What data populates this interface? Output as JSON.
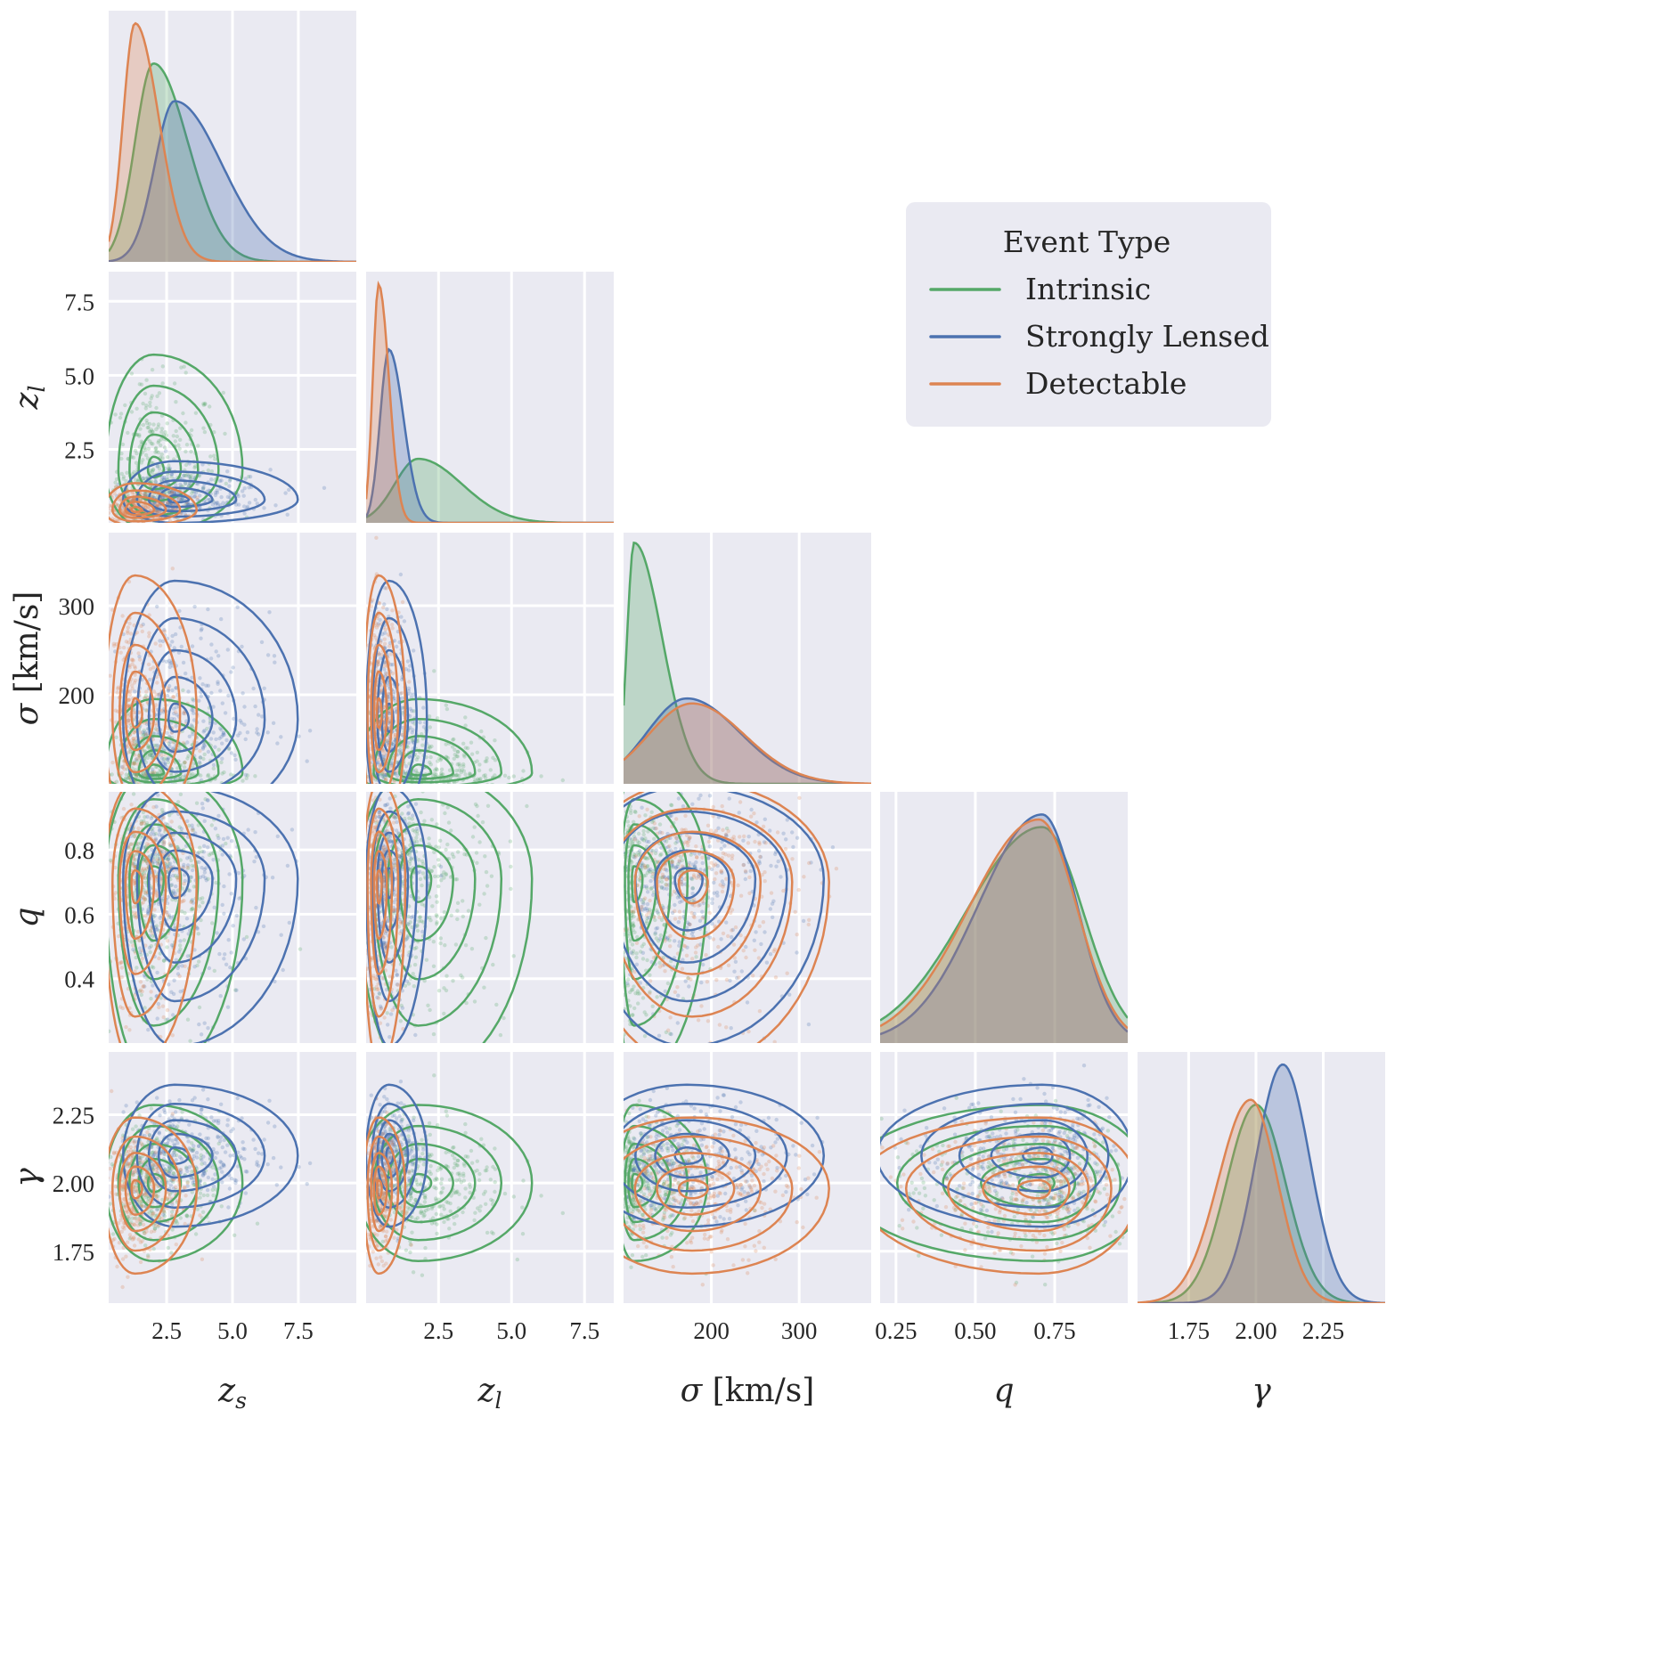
{
  "chart_data": {
    "type": "scatter",
    "kind": "pairplot-corner",
    "grid": true,
    "variables": [
      {
        "key": "zs",
        "label": {
          "main": "z",
          "sub": "s",
          "unit": ""
        },
        "range": [
          0.3,
          9.7
        ],
        "ticks": [
          2.5,
          5.0,
          7.5
        ],
        "tick_labels": [
          "2.5",
          "5.0",
          "7.5"
        ]
      },
      {
        "key": "zl",
        "label": {
          "main": "z",
          "sub": "l",
          "unit": ""
        },
        "range": [
          0.02,
          8.5
        ],
        "ticks": [
          2.5,
          5.0,
          7.5
        ],
        "tick_labels": [
          "2.5",
          "5.0",
          "7.5"
        ]
      },
      {
        "key": "sigma",
        "label": {
          "main": "σ",
          "sub": "",
          "unit": " [km/s]"
        },
        "range": [
          100,
          382
        ],
        "ticks": [
          200,
          300
        ],
        "tick_labels": [
          "200",
          "300"
        ]
      },
      {
        "key": "q",
        "label": {
          "main": "q",
          "sub": "",
          "unit": ""
        },
        "range": [
          0.2,
          0.98
        ],
        "ticks": [
          0.25,
          0.5,
          0.75
        ],
        "tick_labels": [
          "0.25",
          "0.50",
          "0.75"
        ],
        "y_ticks": [
          0.4,
          0.6,
          0.8
        ],
        "y_tick_labels": [
          "0.4",
          "0.6",
          "0.8"
        ]
      },
      {
        "key": "gamma",
        "label": {
          "main": "γ",
          "sub": "",
          "unit": ""
        },
        "range": [
          1.56,
          2.48
        ],
        "ticks": [
          1.75,
          2.0,
          2.25
        ],
        "tick_labels": [
          "1.75",
          "2.00",
          "2.25"
        ]
      }
    ],
    "series": [
      {
        "name": "Intrinsic",
        "color": "#55a868",
        "dist": {
          "zs": {
            "mode": 2.0,
            "sd_left": 0.7,
            "sd_right": 1.3,
            "peak": 0.79
          },
          "zl": {
            "mode": 1.8,
            "sd_left": 0.8,
            "sd_right": 1.5,
            "peak": 0.255
          },
          "sigma": {
            "mode": 112,
            "sd_left": 8,
            "sd_right": 32,
            "peak": 0.96
          },
          "q": {
            "mode": 0.71,
            "sd_left": 0.24,
            "sd_right": 0.13,
            "peak": 0.86
          },
          "gamma": {
            "mode": 2.0,
            "sd_left": 0.11,
            "sd_right": 0.11,
            "peak": 0.79
          }
        }
      },
      {
        "name": "Strongly Lensed",
        "color": "#4c72b0",
        "dist": {
          "zs": {
            "mode": 2.8,
            "sd_left": 0.75,
            "sd_right": 1.8,
            "peak": 0.64
          },
          "zl": {
            "mode": 0.8,
            "sd_left": 0.3,
            "sd_right": 0.5,
            "peak": 0.69
          },
          "sigma": {
            "mode": 172,
            "sd_left": 45,
            "sd_right": 60,
            "peak": 0.34
          },
          "q": {
            "mode": 0.71,
            "sd_left": 0.2,
            "sd_right": 0.11,
            "peak": 0.91
          },
          "gamma": {
            "mode": 2.1,
            "sd_left": 0.1,
            "sd_right": 0.1,
            "peak": 0.95
          }
        }
      },
      {
        "name": "Detectable",
        "color": "#dd8452",
        "dist": {
          "zs": {
            "mode": 1.3,
            "sd_left": 0.45,
            "sd_right": 0.9,
            "peak": 0.95
          },
          "zl": {
            "mode": 0.45,
            "sd_left": 0.2,
            "sd_right": 0.35,
            "peak": 0.95
          },
          "sigma": {
            "mode": 178,
            "sd_left": 50,
            "sd_right": 60,
            "peak": 0.32
          },
          "q": {
            "mode": 0.7,
            "sd_left": 0.22,
            "sd_right": 0.12,
            "peak": 0.89
          },
          "gamma": {
            "mode": 1.98,
            "sd_left": 0.12,
            "sd_right": 0.1,
            "peak": 0.81
          }
        }
      }
    ],
    "legend": {
      "title": "Event Type",
      "placement": "right",
      "order": [
        "Intrinsic",
        "Strongly Lensed",
        "Detectable"
      ]
    }
  }
}
